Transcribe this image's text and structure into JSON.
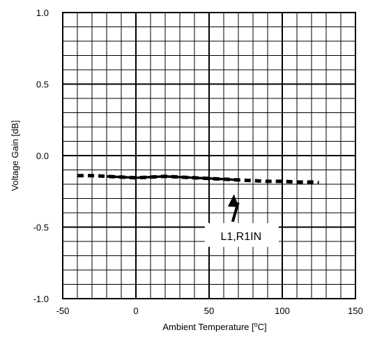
{
  "chart_data": {
    "type": "line",
    "title": "",
    "xlabel": "Ambient Temperature [",
    "xlabel_unit_sup": "o",
    "xlabel_unit": "C]",
    "ylabel": "Voltage Gain [dB]",
    "xlim": [
      -50,
      150
    ],
    "ylim": [
      -1.0,
      1.0
    ],
    "x_ticks": [
      -50,
      0,
      50,
      100,
      150
    ],
    "x_tick_labels": [
      "-50",
      "0",
      "50",
      "100",
      "150"
    ],
    "y_ticks": [
      -1.0,
      -0.5,
      0.0,
      0.5,
      1.0
    ],
    "y_tick_labels": [
      "-1.0",
      "-0.5",
      "0.0",
      "0.5",
      "1.0"
    ],
    "x_minor_step": 10,
    "y_minor_step": 0.1,
    "grid": true,
    "series": [
      {
        "name": "L1,R1IN",
        "color": "#000000",
        "style": "dashed",
        "x": [
          -40,
          -30,
          -20,
          -10,
          0,
          10,
          20,
          30,
          40,
          50,
          60,
          70,
          80,
          90,
          100,
          110,
          120,
          125
        ],
        "y": [
          -0.14,
          -0.14,
          -0.145,
          -0.15,
          -0.155,
          -0.15,
          -0.145,
          -0.15,
          -0.155,
          -0.16,
          -0.165,
          -0.17,
          -0.175,
          -0.18,
          -0.18,
          -0.185,
          -0.185,
          -0.19
        ]
      }
    ],
    "annotation": {
      "text": "L1,R1IN",
      "x": 68,
      "y": -0.55,
      "arrow_to": {
        "x": 67,
        "y": -0.27
      }
    }
  }
}
